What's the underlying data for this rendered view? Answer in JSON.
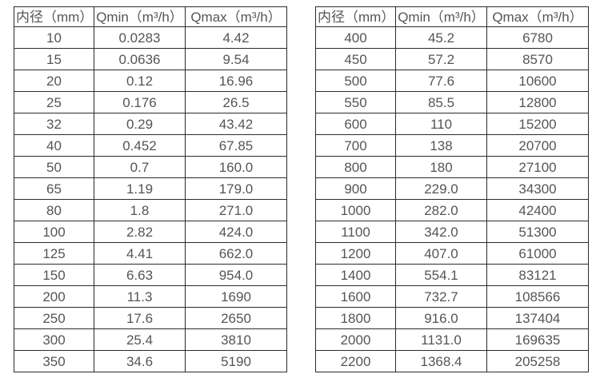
{
  "colors": {
    "background": "#ffffff",
    "border": "#2b2b2b",
    "text": "#555556"
  },
  "tables": [
    {
      "name": "small-diameter-flow-table",
      "headers": [
        "内径（mm）",
        "Qmin（m³/h）",
        "Qmax（m³/h）"
      ],
      "rows": [
        [
          "10",
          "0.0283",
          "4.42"
        ],
        [
          "15",
          "0.0636",
          "9.54"
        ],
        [
          "20",
          "0.12",
          "16.96"
        ],
        [
          "25",
          "0.176",
          "26.5"
        ],
        [
          "32",
          "0.29",
          "43.42"
        ],
        [
          "40",
          "0.452",
          "67.85"
        ],
        [
          "50",
          "0.7",
          "160.0"
        ],
        [
          "65",
          "1.19",
          "179.0"
        ],
        [
          "80",
          "1.8",
          "271.0"
        ],
        [
          "100",
          "2.82",
          "424.0"
        ],
        [
          "125",
          "4.41",
          "662.0"
        ],
        [
          "150",
          "6.63",
          "954.0"
        ],
        [
          "200",
          "11.3",
          "1690"
        ],
        [
          "250",
          "17.6",
          "2650"
        ],
        [
          "300",
          "25.4",
          "3810"
        ],
        [
          "350",
          "34.6",
          "5190"
        ]
      ]
    },
    {
      "name": "large-diameter-flow-table",
      "headers": [
        "内径（mm）",
        "Qmin（m³/h）",
        "Qmax（m³/h）"
      ],
      "rows": [
        [
          "400",
          "45.2",
          "6780"
        ],
        [
          "450",
          "57.2",
          "8570"
        ],
        [
          "500",
          "77.6",
          "10600"
        ],
        [
          "550",
          "85.5",
          "12800"
        ],
        [
          "600",
          "110",
          "15200"
        ],
        [
          "700",
          "138",
          "20700"
        ],
        [
          "800",
          "180",
          "27100"
        ],
        [
          "900",
          "229.0",
          "34300"
        ],
        [
          "1000",
          "282.0",
          "42400"
        ],
        [
          "1100",
          "342.0",
          "51300"
        ],
        [
          "1200",
          "407.0",
          "61000"
        ],
        [
          "1400",
          "554.1",
          "83121"
        ],
        [
          "1600",
          "732.7",
          "108566"
        ],
        [
          "1800",
          "916.0",
          "137404"
        ],
        [
          "2000",
          "1131.0",
          "169635"
        ],
        [
          "2200",
          "1368.4",
          "205258"
        ]
      ]
    }
  ]
}
